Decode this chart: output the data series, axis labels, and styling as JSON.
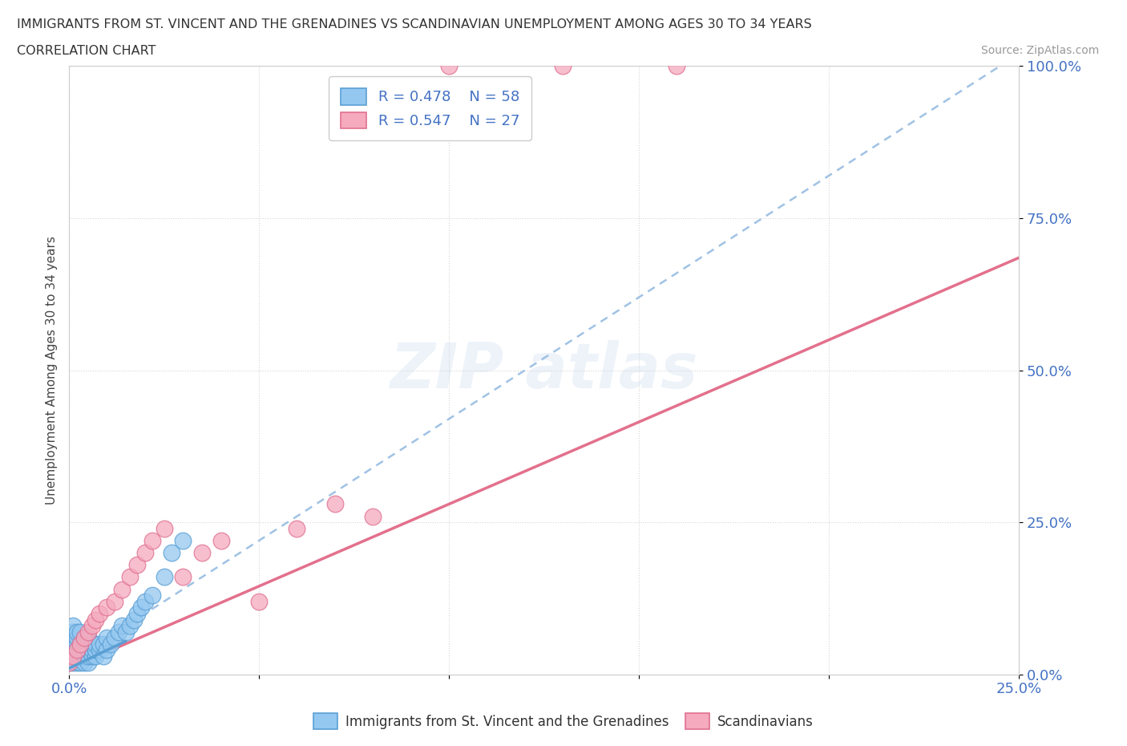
{
  "title_line1": "IMMIGRANTS FROM ST. VINCENT AND THE GRENADINES VS SCANDINAVIAN UNEMPLOYMENT AMONG AGES 30 TO 34 YEARS",
  "title_line2": "CORRELATION CHART",
  "source": "Source: ZipAtlas.com",
  "ylabel": "Unemployment Among Ages 30 to 34 years",
  "xlim": [
    0,
    0.25
  ],
  "ylim": [
    0,
    1.0
  ],
  "xtick_positions": [
    0.0,
    0.05,
    0.1,
    0.15,
    0.2,
    0.25
  ],
  "xtick_labels": [
    "0.0%",
    "",
    "",
    "",
    "",
    "25.0%"
  ],
  "ytick_positions": [
    0.0,
    0.25,
    0.5,
    0.75,
    1.0
  ],
  "ytick_labels": [
    "0.0%",
    "25.0%",
    "50.0%",
    "75.0%",
    "100.0%"
  ],
  "blue_color": "#95C8F0",
  "pink_color": "#F5AABE",
  "blue_edge": "#5a9fd4",
  "pink_edge": "#e07090",
  "trend_blue_color": "#90B8E0",
  "trend_pink_color": "#E06080",
  "tick_color": "#4472c4",
  "legend_label_color": "#4472c4",
  "blue_x": [
    0.0,
    0.0,
    0.0,
    0.0,
    0.0,
    0.001,
    0.001,
    0.001,
    0.001,
    0.001,
    0.001,
    0.001,
    0.002,
    0.002,
    0.002,
    0.002,
    0.002,
    0.002,
    0.003,
    0.003,
    0.003,
    0.003,
    0.003,
    0.004,
    0.004,
    0.004,
    0.004,
    0.004,
    0.005,
    0.005,
    0.005,
    0.005,
    0.006,
    0.006,
    0.006,
    0.007,
    0.007,
    0.007,
    0.008,
    0.008,
    0.009,
    0.009,
    0.01,
    0.01,
    0.011,
    0.012,
    0.013,
    0.014,
    0.015,
    0.016,
    0.017,
    0.018,
    0.019,
    0.02,
    0.022,
    0.025,
    0.027,
    0.03
  ],
  "blue_y": [
    0.02,
    0.03,
    0.04,
    0.05,
    0.06,
    0.02,
    0.03,
    0.04,
    0.05,
    0.06,
    0.07,
    0.08,
    0.02,
    0.03,
    0.04,
    0.05,
    0.06,
    0.07,
    0.02,
    0.03,
    0.04,
    0.05,
    0.07,
    0.02,
    0.03,
    0.04,
    0.05,
    0.06,
    0.02,
    0.03,
    0.04,
    0.06,
    0.03,
    0.04,
    0.05,
    0.03,
    0.04,
    0.05,
    0.04,
    0.05,
    0.03,
    0.05,
    0.04,
    0.06,
    0.05,
    0.06,
    0.07,
    0.08,
    0.07,
    0.08,
    0.09,
    0.1,
    0.11,
    0.12,
    0.13,
    0.16,
    0.2,
    0.22
  ],
  "pink_x": [
    0.0,
    0.001,
    0.002,
    0.003,
    0.004,
    0.005,
    0.006,
    0.007,
    0.008,
    0.01,
    0.012,
    0.014,
    0.016,
    0.018,
    0.02,
    0.022,
    0.025,
    0.03,
    0.035,
    0.04,
    0.05,
    0.06,
    0.07,
    0.08,
    0.1,
    0.13,
    0.16
  ],
  "pink_y": [
    0.02,
    0.03,
    0.04,
    0.05,
    0.06,
    0.07,
    0.08,
    0.09,
    0.1,
    0.11,
    0.12,
    0.14,
    0.16,
    0.18,
    0.2,
    0.22,
    0.24,
    0.16,
    0.2,
    0.22,
    0.12,
    0.24,
    0.28,
    0.26,
    1.0,
    1.0,
    1.0
  ],
  "blue_trend_slope": 4.0,
  "blue_trend_intercept": 0.02,
  "pink_trend_slope": 2.7,
  "pink_trend_intercept": 0.01
}
